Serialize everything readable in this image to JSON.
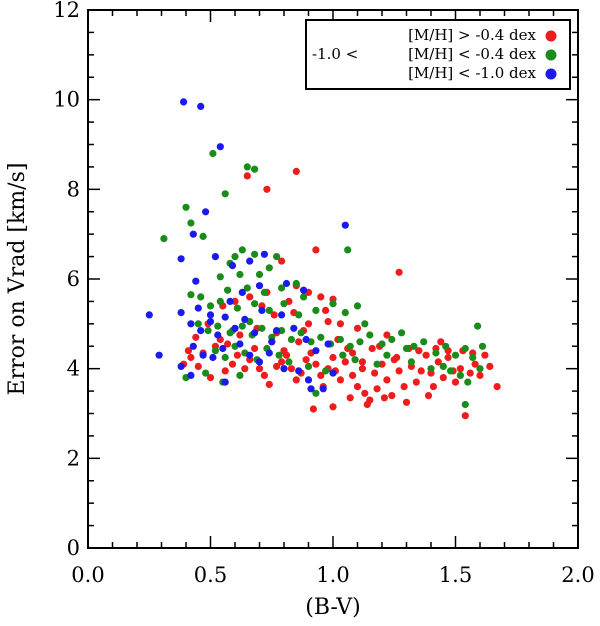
{
  "chart_data": {
    "type": "scatter",
    "title": "",
    "xlabel": "(B-V)",
    "ylabel": "Error on Vrad [km/s]",
    "xlim": [
      0.0,
      2.0
    ],
    "ylim": [
      0,
      12
    ],
    "xticks": [
      0.0,
      0.5,
      1.0,
      1.5,
      2.0
    ],
    "xtick_labels": [
      "0.0",
      "0.5",
      "1.0",
      "1.5",
      "2.0"
    ],
    "yticks": [
      0,
      2,
      4,
      6,
      8,
      10,
      12
    ],
    "ytick_labels": [
      "0",
      "2",
      "4",
      "6",
      "8",
      "10",
      "12"
    ],
    "grid": false,
    "legend_position": "top-right",
    "series": [
      {
        "name": "[M/H] > -0.4 dex",
        "color": "#ee1c1c",
        "points": [
          [
            0.65,
            8.3
          ],
          [
            0.73,
            8.0
          ],
          [
            0.85,
            8.4
          ],
          [
            0.93,
            6.65
          ],
          [
            1.27,
            6.15
          ],
          [
            0.79,
            6.4
          ],
          [
            0.85,
            5.85
          ],
          [
            0.9,
            5.7
          ],
          [
            0.95,
            5.6
          ],
          [
            1.0,
            5.55
          ],
          [
            0.82,
            5.5
          ],
          [
            0.73,
            5.7
          ],
          [
            0.66,
            5.6
          ],
          [
            0.6,
            5.5
          ],
          [
            0.55,
            5.4
          ],
          [
            0.98,
            5.05
          ],
          [
            1.03,
            5.0
          ],
          [
            1.1,
            4.9
          ],
          [
            0.88,
            4.85
          ],
          [
            0.77,
            4.8
          ],
          [
            0.69,
            4.9
          ],
          [
            0.62,
            4.75
          ],
          [
            0.57,
            4.55
          ],
          [
            0.52,
            4.5
          ],
          [
            0.47,
            4.35
          ],
          [
            0.42,
            4.25
          ],
          [
            0.45,
            4.05
          ],
          [
            0.5,
            3.8
          ],
          [
            0.56,
            3.95
          ],
          [
            0.61,
            4.3
          ],
          [
            0.66,
            4.2
          ],
          [
            0.7,
            4.0
          ],
          [
            0.72,
            3.85
          ],
          [
            0.74,
            3.65
          ],
          [
            0.77,
            4.05
          ],
          [
            0.79,
            4.15
          ],
          [
            0.81,
            4.3
          ],
          [
            0.83,
            4.0
          ],
          [
            0.85,
            3.75
          ],
          [
            0.87,
            3.9
          ],
          [
            0.89,
            4.2
          ],
          [
            0.91,
            4.35
          ],
          [
            0.93,
            4.1
          ],
          [
            0.95,
            3.85
          ],
          [
            0.96,
            3.6
          ],
          [
            0.98,
            4.0
          ],
          [
            1.0,
            4.25
          ],
          [
            1.01,
            3.95
          ],
          [
            1.03,
            3.75
          ],
          [
            1.05,
            4.15
          ],
          [
            1.06,
            4.45
          ],
          [
            1.08,
            3.85
          ],
          [
            1.1,
            3.6
          ],
          [
            1.12,
            4.0
          ],
          [
            1.13,
            3.45
          ],
          [
            1.15,
            3.3
          ],
          [
            1.17,
            3.9
          ],
          [
            1.18,
            3.55
          ],
          [
            1.2,
            4.1
          ],
          [
            1.22,
            3.75
          ],
          [
            1.24,
            3.4
          ],
          [
            1.25,
            4.2
          ],
          [
            1.27,
            3.95
          ],
          [
            1.29,
            3.6
          ],
          [
            1.31,
            4.45
          ],
          [
            1.32,
            4.05
          ],
          [
            1.34,
            3.7
          ],
          [
            1.36,
            3.95
          ],
          [
            1.38,
            4.3
          ],
          [
            1.4,
            3.9
          ],
          [
            1.41,
            3.6
          ],
          [
            1.43,
            4.15
          ],
          [
            1.45,
            3.8
          ],
          [
            1.47,
            4.25
          ],
          [
            1.49,
            3.95
          ],
          [
            1.5,
            3.7
          ],
          [
            1.52,
            4.0
          ],
          [
            1.54,
            2.95
          ],
          [
            1.56,
            3.9
          ],
          [
            1.58,
            4.1
          ],
          [
            1.6,
            3.85
          ],
          [
            1.62,
            4.3
          ],
          [
            1.64,
            4.05
          ],
          [
            1.67,
            3.6
          ],
          [
            0.92,
            3.1
          ],
          [
            1.0,
            3.15
          ],
          [
            1.07,
            3.35
          ],
          [
            1.14,
            3.2
          ],
          [
            1.21,
            3.35
          ],
          [
            1.3,
            3.25
          ],
          [
            1.39,
            3.4
          ],
          [
            1.44,
            4.6
          ],
          [
            1.47,
            4.4
          ],
          [
            1.22,
            4.75
          ],
          [
            1.19,
            4.5
          ],
          [
            1.02,
            4.65
          ],
          [
            0.97,
            5.3
          ],
          [
            0.9,
            5.0
          ],
          [
            0.86,
            4.6
          ],
          [
            0.8,
            4.4
          ],
          [
            0.75,
            4.6
          ],
          [
            0.68,
            4.45
          ],
          [
            0.64,
            4.0
          ],
          [
            0.59,
            4.1
          ],
          [
            0.54,
            4.65
          ],
          [
            0.49,
            5.0
          ],
          [
            0.44,
            4.7
          ],
          [
            0.41,
            4.4
          ],
          [
            0.39,
            4.1
          ],
          [
            0.76,
            5.2
          ],
          [
            0.71,
            5.4
          ],
          [
            0.84,
            5.25
          ],
          [
            1.08,
            4.35
          ],
          [
            1.12,
            4.15
          ],
          [
            1.16,
            4.45
          ],
          [
            1.26,
            4.25
          ],
          [
            1.35,
            4.4
          ],
          [
            1.42,
            4.45
          ],
          [
            1.53,
            4.4
          ],
          [
            1.57,
            4.35
          ]
        ]
      },
      {
        "name": "[M/H] < -0.4 dex",
        "label_prefix": "-1.0 <",
        "color": "#1a8c1a",
        "points": [
          [
            0.51,
            8.8
          ],
          [
            0.65,
            8.5
          ],
          [
            0.68,
            8.45
          ],
          [
            0.56,
            7.9
          ],
          [
            0.4,
            7.6
          ],
          [
            0.42,
            7.25
          ],
          [
            0.31,
            6.9
          ],
          [
            0.47,
            6.95
          ],
          [
            0.6,
            6.5
          ],
          [
            0.63,
            6.65
          ],
          [
            0.68,
            6.55
          ],
          [
            0.77,
            6.5
          ],
          [
            1.06,
            6.65
          ],
          [
            0.58,
            6.35
          ],
          [
            0.54,
            6.05
          ],
          [
            0.62,
            6.1
          ],
          [
            0.7,
            6.1
          ],
          [
            0.74,
            6.25
          ],
          [
            0.57,
            5.75
          ],
          [
            0.65,
            5.8
          ],
          [
            0.72,
            5.7
          ],
          [
            0.79,
            5.8
          ],
          [
            0.85,
            5.9
          ],
          [
            0.88,
            5.6
          ],
          [
            0.42,
            5.65
          ],
          [
            0.46,
            5.6
          ],
          [
            0.5,
            5.4
          ],
          [
            0.54,
            5.5
          ],
          [
            0.61,
            5.35
          ],
          [
            0.68,
            5.45
          ],
          [
            0.74,
            5.3
          ],
          [
            0.8,
            5.45
          ],
          [
            0.86,
            5.2
          ],
          [
            0.93,
            5.3
          ],
          [
            1.0,
            5.45
          ],
          [
            1.05,
            5.25
          ],
          [
            1.1,
            5.4
          ],
          [
            0.45,
            5.0
          ],
          [
            0.49,
            4.85
          ],
          [
            0.53,
            4.95
          ],
          [
            0.58,
            4.8
          ],
          [
            0.63,
            4.95
          ],
          [
            0.67,
            4.75
          ],
          [
            0.71,
            4.9
          ],
          [
            0.75,
            4.7
          ],
          [
            0.79,
            4.85
          ],
          [
            0.83,
            4.65
          ],
          [
            0.87,
            4.8
          ],
          [
            0.91,
            4.6
          ],
          [
            0.95,
            4.7
          ],
          [
            0.99,
            4.55
          ],
          [
            1.03,
            4.65
          ],
          [
            1.07,
            4.5
          ],
          [
            1.11,
            4.6
          ],
          [
            1.15,
            4.75
          ],
          [
            1.2,
            4.55
          ],
          [
            1.24,
            4.65
          ],
          [
            1.28,
            4.8
          ],
          [
            1.33,
            4.5
          ],
          [
            1.37,
            4.6
          ],
          [
            1.42,
            4.35
          ],
          [
            1.46,
            4.5
          ],
          [
            1.5,
            4.3
          ],
          [
            1.54,
            4.45
          ],
          [
            1.59,
            4.95
          ],
          [
            1.61,
            4.5
          ],
          [
            1.57,
            4.25
          ],
          [
            0.52,
            4.4
          ],
          [
            0.56,
            4.25
          ],
          [
            0.6,
            4.5
          ],
          [
            0.64,
            4.35
          ],
          [
            0.69,
            4.2
          ],
          [
            0.73,
            4.45
          ],
          [
            0.78,
            4.3
          ],
          [
            0.82,
            4.15
          ],
          [
            0.9,
            4.05
          ],
          [
            0.97,
            3.95
          ],
          [
            1.04,
            4.3
          ],
          [
            1.09,
            4.2
          ],
          [
            1.18,
            4.1
          ],
          [
            1.32,
            4.15
          ],
          [
            1.4,
            4.0
          ],
          [
            1.48,
            3.95
          ],
          [
            1.55,
            3.7
          ],
          [
            1.54,
            3.2
          ],
          [
            0.4,
            3.8
          ],
          [
            0.48,
            3.9
          ],
          [
            0.55,
            3.7
          ],
          [
            0.62,
            3.85
          ],
          [
            0.93,
            3.45
          ],
          [
            0.59,
            4.85
          ],
          [
            0.66,
            5.05
          ],
          [
            1.13,
            5.0
          ],
          [
            1.22,
            4.3
          ],
          [
            1.3,
            4.45
          ],
          [
            1.45,
            4.05
          ],
          [
            1.52,
            3.85
          ],
          [
            1.6,
            4.0
          ]
        ]
      },
      {
        "name": "[M/H] < -1.0 dex",
        "color": "#1a1aee",
        "points": [
          [
            0.39,
            9.95
          ],
          [
            0.46,
            9.85
          ],
          [
            0.54,
            8.95
          ],
          [
            0.48,
            7.5
          ],
          [
            0.43,
            7.0
          ],
          [
            0.38,
            6.45
          ],
          [
            0.44,
            5.95
          ],
          [
            0.52,
            6.5
          ],
          [
            0.59,
            6.3
          ],
          [
            0.66,
            6.4
          ],
          [
            0.72,
            6.55
          ],
          [
            1.05,
            7.2
          ],
          [
            0.25,
            5.2
          ],
          [
            0.38,
            5.25
          ],
          [
            0.42,
            5.0
          ],
          [
            0.46,
            4.85
          ],
          [
            0.5,
            5.05
          ],
          [
            0.53,
            4.75
          ],
          [
            0.56,
            5.15
          ],
          [
            0.6,
            4.9
          ],
          [
            0.64,
            5.1
          ],
          [
            0.68,
            4.8
          ],
          [
            0.71,
            5.3
          ],
          [
            0.75,
            4.6
          ],
          [
            0.79,
            5.2
          ],
          [
            0.84,
            4.9
          ],
          [
            0.89,
            4.65
          ],
          [
            0.93,
            4.4
          ],
          [
            0.98,
            4.55
          ],
          [
            0.43,
            4.5
          ],
          [
            0.47,
            4.3
          ],
          [
            0.51,
            4.25
          ],
          [
            0.55,
            4.45
          ],
          [
            0.62,
            4.55
          ],
          [
            0.66,
            4.3
          ],
          [
            0.7,
            4.15
          ],
          [
            0.74,
            4.35
          ],
          [
            0.8,
            4.0
          ],
          [
            0.86,
            3.95
          ],
          [
            0.29,
            4.3
          ],
          [
            0.38,
            4.05
          ],
          [
            0.42,
            3.85
          ],
          [
            0.56,
            3.7
          ],
          [
            0.81,
            5.9
          ],
          [
            0.88,
            5.75
          ],
          [
            0.9,
            3.75
          ],
          [
            0.91,
            3.55
          ],
          [
            0.96,
            3.55
          ],
          [
            1.0,
            3.9
          ],
          [
            0.58,
            5.5
          ],
          [
            0.63,
            5.7
          ],
          [
            0.7,
            5.85
          ],
          [
            0.5,
            5.2
          ],
          [
            0.45,
            5.35
          ],
          [
            0.77,
            4.85
          ]
        ]
      }
    ]
  }
}
